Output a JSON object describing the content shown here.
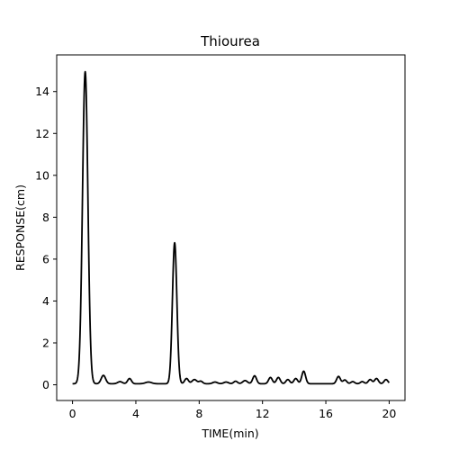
{
  "chart_data": {
    "type": "line",
    "title": "Thiourea",
    "xlabel": "TIME(min)",
    "ylabel": "RESPONSE(cm)",
    "xlim": [
      -1.0,
      21.0
    ],
    "ylim": [
      -0.75,
      15.75
    ],
    "xticks": [
      0,
      4,
      8,
      12,
      16,
      20
    ],
    "yticks": [
      0,
      2,
      4,
      6,
      8,
      10,
      12,
      14
    ],
    "grid": false,
    "series_color": "#000000",
    "baseline": 0.05,
    "x_range": [
      0,
      20
    ],
    "peaks": [
      {
        "x": 0.8,
        "height": 14.9,
        "width": 0.17
      },
      {
        "x": 1.95,
        "height": 0.4,
        "width": 0.14
      },
      {
        "x": 3.0,
        "height": 0.1,
        "width": 0.15
      },
      {
        "x": 3.6,
        "height": 0.25,
        "width": 0.12
      },
      {
        "x": 4.8,
        "height": 0.08,
        "width": 0.2
      },
      {
        "x": 6.45,
        "height": 6.73,
        "width": 0.14
      },
      {
        "x": 7.2,
        "height": 0.25,
        "width": 0.12
      },
      {
        "x": 7.7,
        "height": 0.2,
        "width": 0.15
      },
      {
        "x": 8.1,
        "height": 0.12,
        "width": 0.12
      },
      {
        "x": 9.0,
        "height": 0.08,
        "width": 0.15
      },
      {
        "x": 9.7,
        "height": 0.08,
        "width": 0.15
      },
      {
        "x": 10.3,
        "height": 0.12,
        "width": 0.12
      },
      {
        "x": 10.9,
        "height": 0.15,
        "width": 0.15
      },
      {
        "x": 11.5,
        "height": 0.38,
        "width": 0.12
      },
      {
        "x": 12.5,
        "height": 0.3,
        "width": 0.12
      },
      {
        "x": 13.0,
        "height": 0.3,
        "width": 0.12
      },
      {
        "x": 13.6,
        "height": 0.2,
        "width": 0.12
      },
      {
        "x": 14.1,
        "height": 0.25,
        "width": 0.12
      },
      {
        "x": 14.6,
        "height": 0.6,
        "width": 0.12
      },
      {
        "x": 16.8,
        "height": 0.35,
        "width": 0.12
      },
      {
        "x": 17.2,
        "height": 0.18,
        "width": 0.12
      },
      {
        "x": 17.7,
        "height": 0.1,
        "width": 0.12
      },
      {
        "x": 18.3,
        "height": 0.1,
        "width": 0.12
      },
      {
        "x": 18.8,
        "height": 0.2,
        "width": 0.12
      },
      {
        "x": 19.2,
        "height": 0.25,
        "width": 0.12
      },
      {
        "x": 19.8,
        "height": 0.2,
        "width": 0.12
      }
    ]
  }
}
